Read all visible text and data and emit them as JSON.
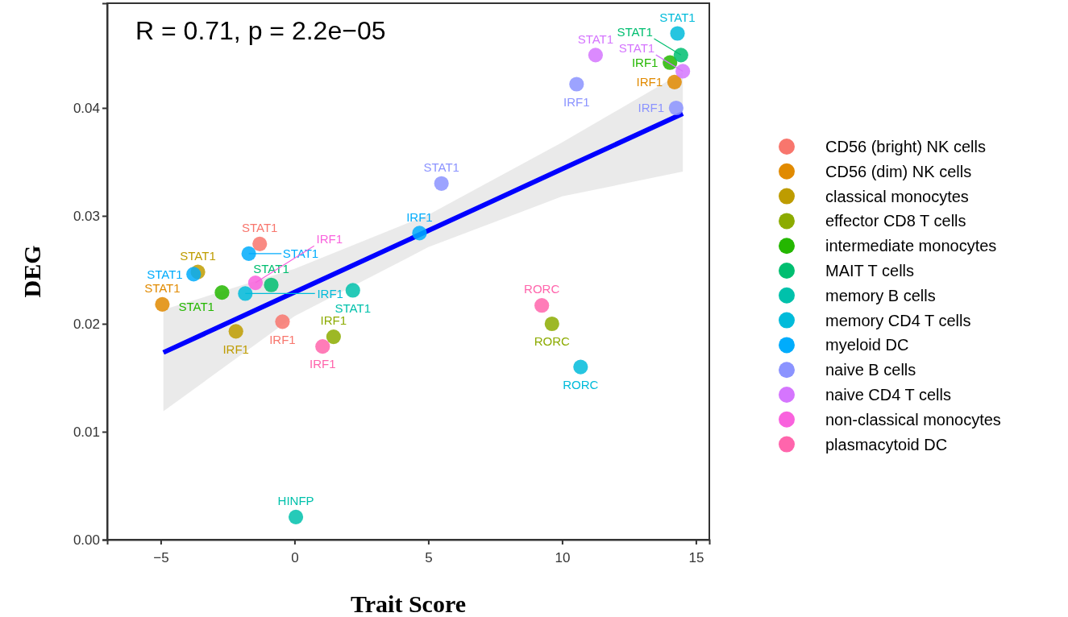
{
  "chart_data": {
    "type": "scatter",
    "xlabel": "Trait Score",
    "ylabel": "DEG",
    "xlim": [
      -7,
      15.5
    ],
    "ylim": [
      0,
      0.0497
    ],
    "xticks": [
      {
        "value": -5,
        "label": "−5"
      },
      0,
      5,
      10,
      15
    ],
    "yticks": [
      {
        "value": 0,
        "label": "0.00"
      },
      {
        "value": 0.01,
        "label": "0.01"
      },
      {
        "value": 0.02,
        "label": "0.02"
      },
      {
        "value": 0.03,
        "label": "0.03"
      },
      {
        "value": 0.04,
        "label": "0.04"
      }
    ],
    "grid": false,
    "legend": "right",
    "marker": "circle",
    "annotations": [
      "R = 0.71, p = 2.2e−05"
    ],
    "series": [
      {
        "type": "line",
        "color": "#0000ff",
        "x": [
          -4.9,
          0,
          5,
          10,
          14.51
        ],
        "values": [
          0.01734,
          0.02293,
          0.02863,
          0.03434,
          0.03948
        ],
        "lower": [
          0.0119,
          0.0207,
          0.0271,
          0.0318,
          0.0341
        ],
        "upper": [
          0.0213,
          0.0251,
          0.0301,
          0.0368,
          0.0433
        ],
        "line_style": "solid",
        "marker": "none"
      },
      {
        "name": "CD56 (bright) NK cells",
        "color": "#f8766d",
        "x": [
          -1.3,
          -0.45
        ],
        "values": [
          0.0274,
          0.0202
        ],
        "value_labels": [
          "STAT1",
          "IRF1"
        ]
      },
      {
        "name": "CD56 (dim) NK cells",
        "color": "#e18a00",
        "x": [
          -4.94,
          14.2
        ],
        "values": [
          0.0218,
          0.0424
        ],
        "value_labels": [
          "STAT1",
          "IRF1"
        ]
      },
      {
        "name": "classical monocytes",
        "color": "#be9c00",
        "x": [
          -3.61,
          -2.19
        ],
        "values": [
          0.0248,
          0.0193
        ],
        "value_labels": [
          "STAT1",
          "IRF1"
        ]
      },
      {
        "name": "effector CD8 T cells",
        "color": "#8cab00",
        "x": [
          1.46,
          9.62
        ],
        "values": [
          0.0188,
          0.02
        ],
        "value_labels": [
          "IRF1",
          "RORC"
        ]
      },
      {
        "name": "intermediate monocytes",
        "color": "#24b700",
        "x": [
          -2.71,
          14.03
        ],
        "values": [
          0.0229,
          0.0442
        ],
        "value_labels": [
          "STAT1",
          "IRF1"
        ]
      },
      {
        "name": "MAIT T cells",
        "color": "#00be70",
        "x": [
          -0.87,
          14.44
        ],
        "values": [
          0.0236,
          0.0449
        ],
        "value_labels": [
          "STAT1",
          "STAT1"
        ]
      },
      {
        "name": "memory B cells",
        "color": "#00c1ab",
        "x": [
          2.18,
          0.05
        ],
        "values": [
          0.0231,
          0.0021
        ],
        "value_labels": [
          "STAT1",
          "HINFP"
        ]
      },
      {
        "name": "memory CD4 T cells",
        "color": "#00bbda",
        "x": [
          14.31,
          -1.84,
          10.69
        ],
        "values": [
          0.0469,
          0.0228,
          0.016
        ],
        "value_labels": [
          "STAT1",
          "IRF1",
          "RORC"
        ]
      },
      {
        "name": "myeloid DC",
        "color": "#00acfc",
        "x": [
          -1.71,
          -3.77,
          4.67
        ],
        "values": [
          0.0265,
          0.0246,
          0.0284
        ],
        "value_labels": [
          "STAT1",
          "STAT1",
          "IRF1"
        ]
      },
      {
        "name": "naive B cells",
        "color": "#8b93ff",
        "x": [
          5.49,
          10.54,
          14.26
        ],
        "values": [
          0.033,
          0.0422,
          0.04
        ],
        "value_labels": [
          "STAT1",
          "IRF1",
          "IRF1"
        ]
      },
      {
        "name": "naive CD4 T cells",
        "color": "#d575fe",
        "x": [
          11.25,
          14.51
        ],
        "values": [
          0.0449,
          0.0434
        ],
        "value_labels": [
          "STAT1",
          "STAT1"
        ]
      },
      {
        "name": "non-classical monocytes",
        "color": "#f962dd",
        "x": [
          -1.46
        ],
        "values": [
          0.0238
        ],
        "value_labels": [
          "IRF1"
        ]
      },
      {
        "name": "plasmacytoid DC",
        "color": "#ff65ac",
        "x": [
          1.05,
          9.24
        ],
        "values": [
          0.0179,
          0.0217
        ],
        "value_labels": [
          "IRF1",
          "RORC"
        ]
      }
    ]
  }
}
